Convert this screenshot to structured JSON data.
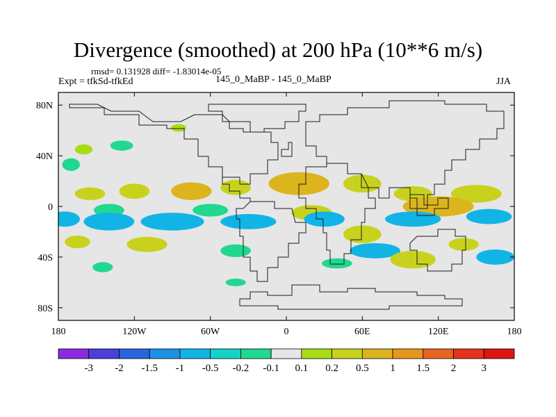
{
  "chart_data": {
    "type": "heatmap",
    "title": "Divergence (smoothed) at 200 hPa (10**6 m/s)",
    "stats": "rmsd= 0.131928 diff= -1.83014e-05",
    "experiment": "Expt = tfkSd-tfkEd",
    "center_label": "145_0_MaBP - 145_0_MaBP",
    "season": "JJA",
    "xlim": [
      -180,
      180
    ],
    "ylim": [
      -90,
      90
    ],
    "x_ticks": [
      {
        "value": -180,
        "label": "180"
      },
      {
        "value": -120,
        "label": "120W"
      },
      {
        "value": -60,
        "label": "60W"
      },
      {
        "value": 0,
        "label": "0"
      },
      {
        "value": 60,
        "label": "60E"
      },
      {
        "value": 120,
        "label": "120E"
      },
      {
        "value": 180,
        "label": "180"
      }
    ],
    "y_ticks": [
      {
        "value": 80,
        "label": "80N"
      },
      {
        "value": 40,
        "label": "40N"
      },
      {
        "value": 0,
        "label": "0"
      },
      {
        "value": -40,
        "label": "40S"
      },
      {
        "value": -80,
        "label": "80S"
      }
    ],
    "colorbar": {
      "labels": [
        "-3",
        "-2",
        "-1.5",
        "-1",
        "-0.5",
        "-0.2",
        "-0.1",
        "0.1",
        "0.2",
        "0.5",
        "1",
        "1.5",
        "2",
        "3"
      ],
      "colors": [
        "#8a2be2",
        "#4b3fd8",
        "#2a63e0",
        "#1e90e6",
        "#12b4e6",
        "#14d2c8",
        "#20d890",
        "#e6e6e6",
        "#a8dc14",
        "#c8d21e",
        "#dcb41e",
        "#e6961e",
        "#e6641e",
        "#e6321e",
        "#dc1414"
      ]
    },
    "anomalies": [
      {
        "lon": -160,
        "lat": 45,
        "rx": 7,
        "ry": 4,
        "value": 0.15
      },
      {
        "lon": -130,
        "lat": 48,
        "rx": 9,
        "ry": 4,
        "value": -0.15
      },
      {
        "lon": -85,
        "lat": 62,
        "rx": 6,
        "ry": 3,
        "value": 0.15
      },
      {
        "lon": -170,
        "lat": 33,
        "rx": 7,
        "ry": 5,
        "value": -0.15
      },
      {
        "lon": -155,
        "lat": 10,
        "rx": 12,
        "ry": 5,
        "value": 0.3
      },
      {
        "lon": -120,
        "lat": 12,
        "rx": 12,
        "ry": 6,
        "value": 0.35
      },
      {
        "lon": -75,
        "lat": 12,
        "rx": 16,
        "ry": 7,
        "value": 0.7
      },
      {
        "lon": -40,
        "lat": 15,
        "rx": 12,
        "ry": 6,
        "value": 0.35
      },
      {
        "lon": 10,
        "lat": 18,
        "rx": 24,
        "ry": 9,
        "value": 0.7
      },
      {
        "lon": 60,
        "lat": 18,
        "rx": 15,
        "ry": 7,
        "value": 0.35
      },
      {
        "lon": 100,
        "lat": 10,
        "rx": 15,
        "ry": 6,
        "value": 0.3
      },
      {
        "lon": 150,
        "lat": 10,
        "rx": 20,
        "ry": 7,
        "value": 0.35
      },
      {
        "lon": -140,
        "lat": -3,
        "rx": 12,
        "ry": 5,
        "value": -0.15
      },
      {
        "lon": -60,
        "lat": -3,
        "rx": 14,
        "ry": 5,
        "value": -0.15
      },
      {
        "lon": 20,
        "lat": -5,
        "rx": 16,
        "ry": 6,
        "value": 0.2
      },
      {
        "lon": 120,
        "lat": 0,
        "rx": 28,
        "ry": 8,
        "value": 0.7
      },
      {
        "lon": -175,
        "lat": -10,
        "rx": 12,
        "ry": 6,
        "value": -0.7
      },
      {
        "lon": -140,
        "lat": -12,
        "rx": 20,
        "ry": 7,
        "value": -0.7
      },
      {
        "lon": -90,
        "lat": -12,
        "rx": 25,
        "ry": 7,
        "value": -0.7
      },
      {
        "lon": -30,
        "lat": -12,
        "rx": 22,
        "ry": 6,
        "value": -0.7
      },
      {
        "lon": 30,
        "lat": -10,
        "rx": 16,
        "ry": 6,
        "value": -0.7
      },
      {
        "lon": 100,
        "lat": -10,
        "rx": 22,
        "ry": 6,
        "value": -0.7
      },
      {
        "lon": 160,
        "lat": -8,
        "rx": 18,
        "ry": 6,
        "value": -0.7
      },
      {
        "lon": 60,
        "lat": -22,
        "rx": 15,
        "ry": 7,
        "value": 0.3
      },
      {
        "lon": -165,
        "lat": -28,
        "rx": 10,
        "ry": 5,
        "value": 0.3
      },
      {
        "lon": -110,
        "lat": -30,
        "rx": 16,
        "ry": 6,
        "value": 0.3
      },
      {
        "lon": 140,
        "lat": -30,
        "rx": 12,
        "ry": 5,
        "value": 0.3
      },
      {
        "lon": 70,
        "lat": -35,
        "rx": 20,
        "ry": 6,
        "value": -0.7
      },
      {
        "lon": 165,
        "lat": -40,
        "rx": 15,
        "ry": 6,
        "value": -0.7
      },
      {
        "lon": -40,
        "lat": -35,
        "rx": 12,
        "ry": 5,
        "value": -0.15
      },
      {
        "lon": 100,
        "lat": -42,
        "rx": 18,
        "ry": 7,
        "value": 0.35
      },
      {
        "lon": -145,
        "lat": -48,
        "rx": 8,
        "ry": 4,
        "value": -0.15
      },
      {
        "lon": 40,
        "lat": -45,
        "rx": 12,
        "ry": 4,
        "value": -0.15
      },
      {
        "lon": -40,
        "lat": -60,
        "rx": 8,
        "ry": 3,
        "value": -0.15
      }
    ]
  }
}
